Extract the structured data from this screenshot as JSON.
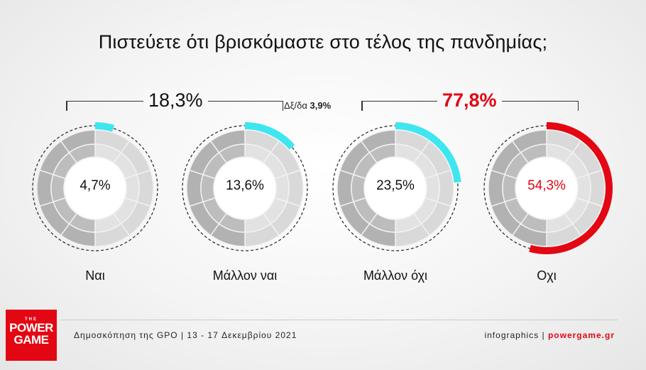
{
  "title": "Πιστεύετε ότι βρισκόμαστε στο τέλος της πανδημίας;",
  "groups": {
    "yes_total": "18,3%",
    "no_total": "77,8%",
    "dk_label": "Δξ/δα",
    "dk_value": "3,9%"
  },
  "colors": {
    "accent_cyan": "#3ee6f0",
    "accent_red": "#e30613",
    "ring_light": "#dcdcdc",
    "ring_dark": "#b4b4b4"
  },
  "chart_data": {
    "type": "donut",
    "title": "Πιστεύετε ότι βρισκόμαστε στο τέλος της πανδημίας;",
    "categories": [
      "Ναι",
      "Μάλλον ναι",
      "Μάλλον όχι",
      "Οχι"
    ],
    "values": [
      4.7,
      13.6,
      23.5,
      54.3
    ],
    "value_labels": [
      "4,7%",
      "13,6%",
      "23,5%",
      "54,3%"
    ],
    "highlight_colors": [
      "#3ee6f0",
      "#3ee6f0",
      "#3ee6f0",
      "#e30613"
    ],
    "group_totals": [
      {
        "label": "18,3%",
        "members": [
          "Ναι",
          "Μάλλον ναι"
        ]
      },
      {
        "label": "77,8%",
        "members": [
          "Μάλλον όχι",
          "Οχι"
        ]
      }
    ],
    "no_answer": {
      "label": "Δξ/δα",
      "value": 3.9
    }
  },
  "footer": {
    "source": "Δημοσκόπηση της GPO | 13 - 17 Δεκεμβρίου 2021",
    "credit_prefix": "infographics | ",
    "credit_site": "powergame.gr"
  },
  "logo": {
    "the": "THE",
    "line1": "POWER",
    "line2": "GAME"
  }
}
